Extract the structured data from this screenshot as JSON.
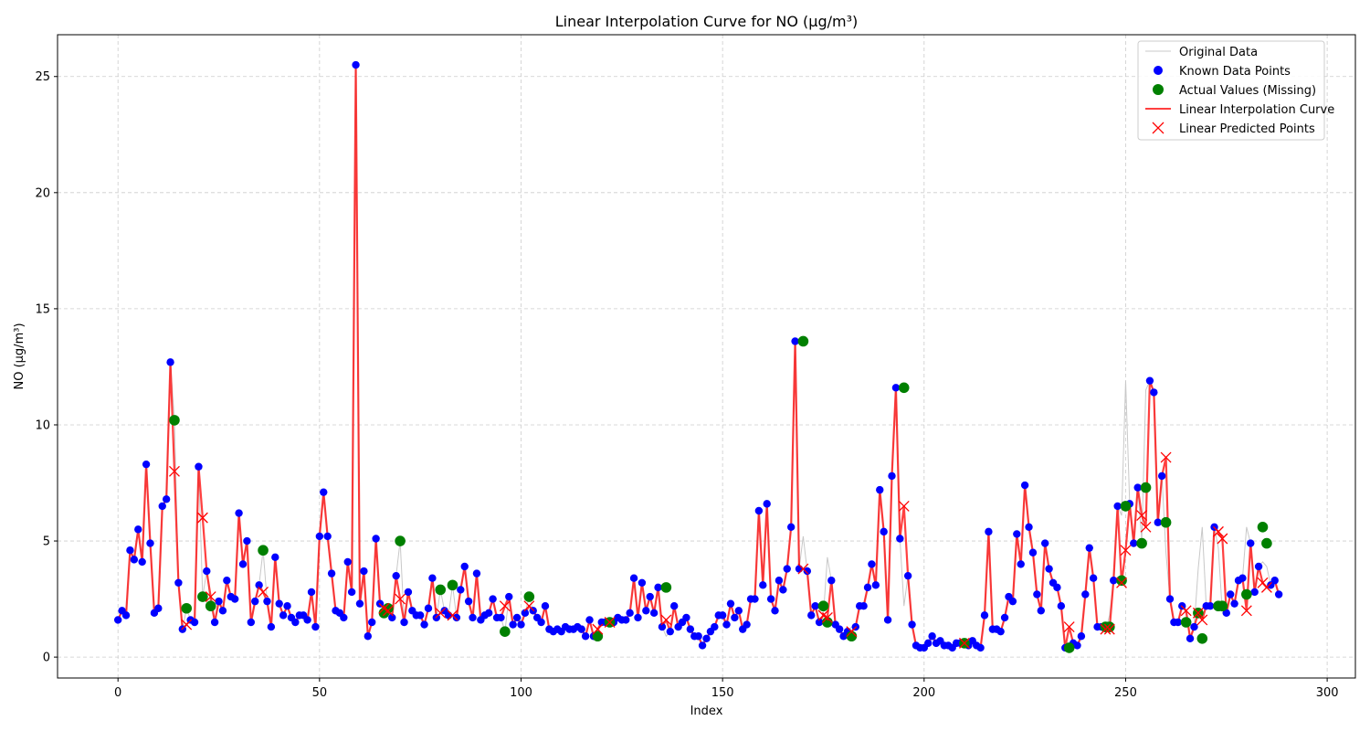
{
  "chart_data": {
    "type": "line",
    "title": "Linear Interpolation Curve for NO (µg/m³)",
    "xlabel": "Index",
    "ylabel": "NO (µg/m³)",
    "xlim": [
      -15,
      307
    ],
    "ylim": [
      -0.9,
      26.8
    ],
    "xticks": [
      0,
      50,
      100,
      150,
      200,
      250,
      300
    ],
    "yticks": [
      0,
      5,
      10,
      15,
      20,
      25
    ],
    "grid": true,
    "legend_position": "top-right",
    "legend": {
      "original": "Original Data",
      "known": "Known Data Points",
      "actual": "Actual Values (Missing)",
      "curve": "Linear Interpolation Curve",
      "predicted": "Linear Predicted Points"
    },
    "colors": {
      "original": "#c8c8c8",
      "known": "#0000ff",
      "actual": "#008000",
      "curve": "#ff0000",
      "predicted": "#ff0000"
    },
    "original": [
      1.6,
      2.0,
      1.8,
      4.6,
      4.2,
      5.5,
      4.1,
      8.3,
      4.9,
      1.9,
      2.1,
      6.5,
      6.8,
      12.7,
      10.2,
      3.2,
      1.2,
      2.1,
      1.6,
      1.5,
      8.2,
      2.6,
      3.7,
      2.2,
      1.5,
      2.4,
      2.0,
      3.3,
      2.6,
      2.5,
      6.2,
      4.0,
      5.0,
      1.5,
      2.4,
      3.1,
      4.6,
      2.4,
      1.3,
      4.3,
      2.3,
      1.8,
      2.2,
      1.7,
      1.5,
      1.8,
      1.8,
      1.6,
      2.8,
      1.3,
      5.2,
      7.1,
      5.2,
      3.6,
      2.0,
      1.9,
      1.7,
      4.1,
      2.8,
      25.5,
      2.3,
      3.7,
      0.9,
      1.5,
      5.1,
      2.3,
      1.9,
      2.1,
      1.7,
      3.5,
      5.0,
      1.5,
      2.8,
      2.0,
      1.8,
      1.8,
      1.4,
      2.1,
      3.4,
      1.7,
      2.9,
      2.0,
      1.8,
      3.1,
      1.7,
      2.9,
      3.9,
      2.4,
      1.7,
      3.6,
      1.6,
      1.8,
      1.9,
      2.5,
      1.7,
      1.7,
      1.1,
      2.6,
      1.4,
      1.7,
      1.4,
      1.9,
      2.6,
      2.0,
      1.7,
      1.5,
      2.2,
      1.2,
      1.1,
      1.2,
      1.1,
      1.3,
      1.2,
      1.2,
      1.3,
      1.2,
      0.9,
      1.6,
      0.9,
      1.0,
      1.5,
      1.5,
      1.5,
      1.5,
      1.7,
      1.6,
      1.6,
      1.9,
      3.4,
      1.7,
      3.2,
      2.0,
      2.6,
      1.9,
      3.0,
      1.3,
      0.9,
      1.1,
      2.2,
      1.3,
      1.5,
      1.7,
      1.2,
      0.9,
      0.9,
      0.5,
      0.8,
      1.1,
      1.3,
      1.8,
      1.8,
      1.4,
      2.3,
      1.7,
      2.0,
      1.2,
      1.4,
      2.5,
      2.5,
      6.3,
      3.1,
      6.6,
      2.5,
      2.0,
      3.3,
      2.9,
      3.8,
      5.6,
      13.6,
      3.8,
      5.2,
      3.7,
      1.8,
      2.2,
      1.5,
      1.8,
      4.3,
      3.3,
      1.4,
      1.2,
      0.9,
      1.1,
      1.3,
      1.3,
      2.2,
      2.2,
      3.0,
      4.0,
      3.1,
      7.2,
      5.4,
      1.6,
      7.8,
      11.6,
      5.1,
      2.2,
      3.5,
      1.4,
      0.5,
      0.4,
      0.4,
      0.6,
      0.9,
      0.6,
      0.7,
      0.5,
      0.5,
      0.4,
      0.6,
      0.6,
      0.7,
      0.5,
      0.7,
      0.5,
      0.4,
      1.8,
      5.4,
      1.2,
      1.2,
      1.1,
      1.7,
      2.6,
      2.4,
      5.3,
      4.0,
      7.4,
      5.6,
      4.5,
      2.7,
      2.0,
      4.9,
      3.8,
      3.2,
      3.0,
      2.2,
      0.4,
      0.4,
      0.6,
      0.5,
      0.9,
      2.7,
      4.7,
      3.4,
      1.3,
      1.3,
      1.1,
      1.8,
      3.3,
      6.5,
      6.1,
      11.9,
      6.6,
      4.9,
      7.3,
      5.0,
      11.5,
      11.9,
      11.4,
      5.8,
      7.8,
      4.5,
      2.5,
      1.5,
      1.5,
      2.2,
      1.9,
      0.8,
      1.3,
      3.8,
      5.6,
      2.2,
      2.2,
      5.6,
      4.7,
      1.9,
      1.9,
      2.7,
      2.3,
      3.3,
      3.4,
      5.6,
      4.9,
      2.8,
      3.9,
      4.1,
      3.9,
      3.1,
      3.3,
      2.7
    ],
    "missing": [
      {
        "x": 14,
        "actual": 10.2,
        "predicted": 8.0
      },
      {
        "x": 17,
        "actual": 2.1,
        "predicted": 1.4
      },
      {
        "x": 21,
        "actual": 2.6,
        "predicted": 6.0
      },
      {
        "x": 23,
        "actual": 2.2,
        "predicted": 2.6
      },
      {
        "x": 36,
        "actual": 4.6,
        "predicted": 2.8
      },
      {
        "x": 66,
        "actual": 1.9,
        "predicted": 2.1
      },
      {
        "x": 67,
        "actual": 2.1,
        "predicted": 2.0
      },
      {
        "x": 70,
        "actual": 5.0,
        "predicted": 2.5
      },
      {
        "x": 80,
        "actual": 2.9,
        "predicted": 1.9
      },
      {
        "x": 83,
        "actual": 3.1,
        "predicted": 1.8
      },
      {
        "x": 96,
        "actual": 1.1,
        "predicted": 2.2
      },
      {
        "x": 102,
        "actual": 2.6,
        "predicted": 2.2
      },
      {
        "x": 119,
        "actual": 0.9,
        "predicted": 1.2
      },
      {
        "x": 122,
        "actual": 1.5,
        "predicted": 1.5
      },
      {
        "x": 136,
        "actual": 3.0,
        "predicted": 1.6
      },
      {
        "x": 170,
        "actual": 13.6,
        "predicted": 3.8
      },
      {
        "x": 175,
        "actual": 2.2,
        "predicted": 1.8
      },
      {
        "x": 176,
        "actual": 1.5,
        "predicted": 1.7
      },
      {
        "x": 182,
        "actual": 0.9,
        "predicted": 1.1
      },
      {
        "x": 195,
        "actual": 11.6,
        "predicted": 6.5
      },
      {
        "x": 210,
        "actual": 0.6,
        "predicted": 0.6
      },
      {
        "x": 236,
        "actual": 0.4,
        "predicted": 1.3
      },
      {
        "x": 245,
        "actual": 1.3,
        "predicted": 1.2
      },
      {
        "x": 246,
        "actual": 1.3,
        "predicted": 1.2
      },
      {
        "x": 249,
        "actual": 3.3,
        "predicted": 3.2
      },
      {
        "x": 250,
        "actual": 6.5,
        "predicted": 4.6
      },
      {
        "x": 254,
        "actual": 4.9,
        "predicted": 6.1
      },
      {
        "x": 255,
        "actual": 7.3,
        "predicted": 5.6
      },
      {
        "x": 260,
        "actual": 5.8,
        "predicted": 8.6
      },
      {
        "x": 265,
        "actual": 1.5,
        "predicted": 2.0
      },
      {
        "x": 268,
        "actual": 1.9,
        "predicted": 1.9
      },
      {
        "x": 269,
        "actual": 0.8,
        "predicted": 1.6
      },
      {
        "x": 273,
        "actual": 2.2,
        "predicted": 5.4
      },
      {
        "x": 274,
        "actual": 2.2,
        "predicted": 5.1
      },
      {
        "x": 280,
        "actual": 2.7,
        "predicted": 2.0
      },
      {
        "x": 284,
        "actual": 5.6,
        "predicted": 3.2
      },
      {
        "x": 285,
        "actual": 4.9,
        "predicted": 3.0
      }
    ]
  }
}
